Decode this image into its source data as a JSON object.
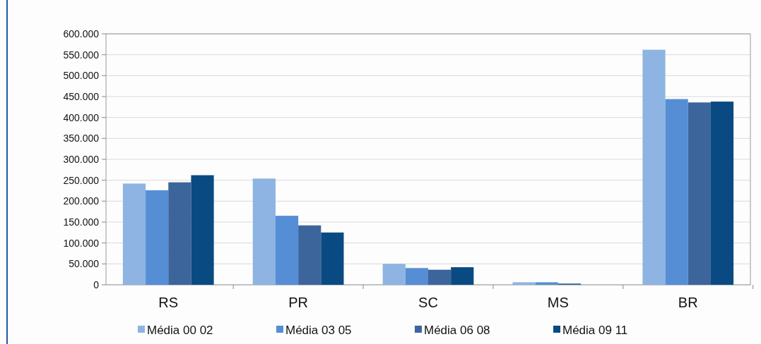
{
  "chart_data": {
    "type": "bar",
    "categories": [
      "RS",
      "PR",
      "SC",
      "MS",
      "BR"
    ],
    "series": [
      {
        "name": "Média 00 02",
        "color": "#8db4e2",
        "values": [
          242000,
          254000,
          50000,
          6000,
          562000
        ]
      },
      {
        "name": "Média 03 05",
        "color": "#558ed5",
        "values": [
          226000,
          165000,
          40000,
          6000,
          444000
        ]
      },
      {
        "name": "Média 06 08",
        "color": "#3c659c",
        "values": [
          245000,
          142000,
          36000,
          3000,
          436000
        ]
      },
      {
        "name": "Média 09 11",
        "color": "#0a4a82",
        "values": [
          262000,
          125000,
          42000,
          0,
          438000
        ]
      }
    ],
    "ylim": [
      0,
      600000
    ],
    "yticks": [
      {
        "value": 0,
        "label": "0"
      },
      {
        "value": 50000,
        "label": "50.000"
      },
      {
        "value": 100000,
        "label": "100.000"
      },
      {
        "value": 150000,
        "label": "150.000"
      },
      {
        "value": 200000,
        "label": "200.000"
      },
      {
        "value": 250000,
        "label": "250.000"
      },
      {
        "value": 300000,
        "label": "300.000"
      },
      {
        "value": 350000,
        "label": "350.000"
      },
      {
        "value": 400000,
        "label": "400.000"
      },
      {
        "value": 450000,
        "label": "450.000"
      },
      {
        "value": 500000,
        "label": "500.000"
      },
      {
        "value": 550000,
        "label": "550.000"
      },
      {
        "value": 600000,
        "label": "600.000"
      }
    ],
    "grid": "y",
    "legend": "bottom"
  }
}
